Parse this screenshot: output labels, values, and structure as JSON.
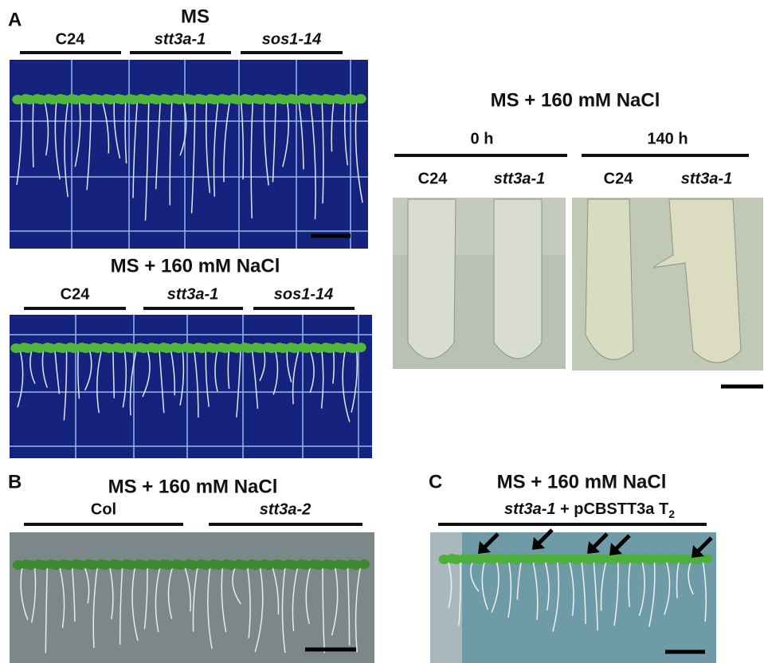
{
  "panel_a": {
    "letter": "A",
    "ms": {
      "title": "MS",
      "labels": [
        "C24",
        "stt3a-1",
        "sos1-14"
      ]
    },
    "nacl": {
      "title": "MS + 160 mM NaCl",
      "labels": [
        "C24",
        "stt3a-1",
        "sos1-14"
      ]
    },
    "micro": {
      "title": "MS + 160 mM NaCl",
      "groups": [
        "0 h",
        "140 h"
      ],
      "labels": [
        "C24",
        "stt3a-1",
        "C24",
        "stt3a-1"
      ]
    }
  },
  "panel_b": {
    "letter": "B",
    "title": "MS + 160 mM NaCl",
    "labels": [
      "Col",
      "stt3a-2"
    ]
  },
  "panel_c": {
    "letter": "C",
    "title": "MS + 160 mM NaCl",
    "label_italic": "stt3a-1",
    "label_rest": " + pCBSTT3a  T",
    "label_sub": "2"
  }
}
